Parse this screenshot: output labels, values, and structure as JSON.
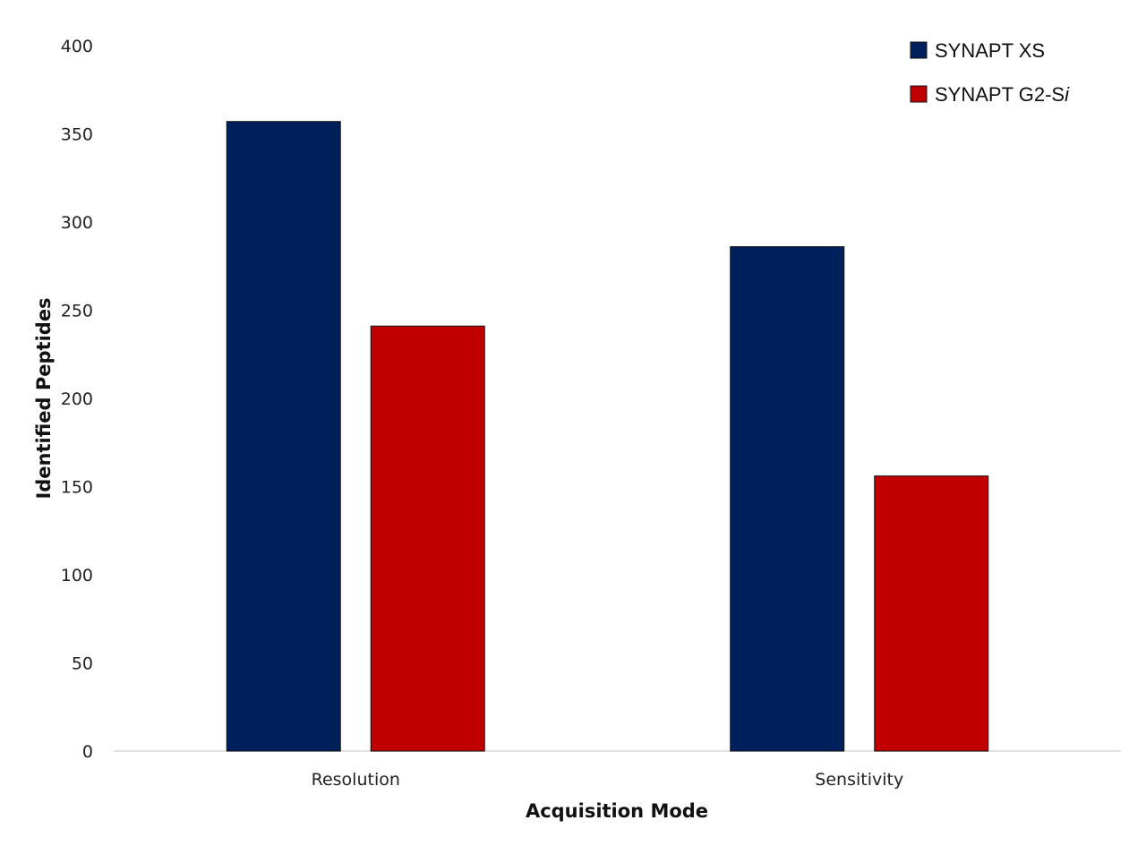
{
  "chart_data": {
    "type": "bar",
    "title": "",
    "xlabel": "Acquisition Mode",
    "ylabel": "Identified Peptides",
    "ylim": [
      0,
      400
    ],
    "yticks": [
      0,
      50,
      100,
      150,
      200,
      250,
      300,
      350,
      400
    ],
    "categories": [
      "Resolution",
      "Sensitivity"
    ],
    "series": [
      {
        "name": "SYNAPT XS",
        "color": "#00205b",
        "values": [
          357,
          286
        ]
      },
      {
        "name": "SYNAPT G2-S",
        "name_suffix_italic": "i",
        "color": "#c00000",
        "values": [
          241,
          156
        ]
      }
    ],
    "grid": false,
    "legend_position": "top-right"
  }
}
